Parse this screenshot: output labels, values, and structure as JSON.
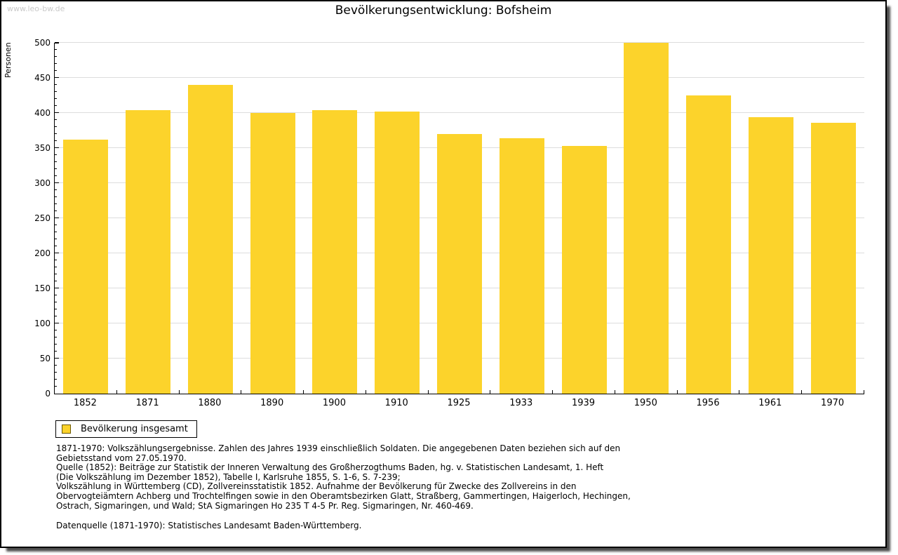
{
  "watermark": "www.leo-bw.de",
  "header": {
    "title": "Bevölkerungsentwicklung: Bofsheim"
  },
  "chart_data": {
    "type": "bar",
    "title": "Bevölkerungsentwicklung: Bofsheim",
    "ylabel": "Personen",
    "xlabel": "",
    "categories": [
      "1852",
      "1871",
      "1880",
      "1890",
      "1900",
      "1910",
      "1925",
      "1933",
      "1939",
      "1950",
      "1956",
      "1961",
      "1970"
    ],
    "values": [
      362,
      404,
      440,
      400,
      404,
      402,
      370,
      364,
      353,
      500,
      425,
      394,
      386
    ],
    "ylim": [
      0,
      500
    ],
    "ytick_step": 50,
    "minor_tick_step": 10,
    "grid": true,
    "legend_position": "bottom-left",
    "legend": [
      {
        "label": "Bevölkerung insgesamt"
      }
    ]
  },
  "colors": {
    "bar": "#FCD32B",
    "gridline": "#DDDDDD",
    "axis": "#000000",
    "watermark_text": "#C9C9C9",
    "swatch_border": "#6B5900"
  },
  "footer": {
    "source_lines": [
      "1871-1970: Volkszählungsergebnisse. Zahlen des Jahres 1939 einschließlich Soldaten. Die angegebenen Daten beziehen sich auf den",
      "Gebietsstand vom 27.05.1970.",
      "Quelle (1852): Beiträge zur Statistik der Inneren Verwaltung des Großherzogthums Baden, hg. v. Statistischen Landesamt, 1. Heft",
      "(Die Volkszählung im Dezember 1852), Tabelle I, Karlsruhe 1855, S. 1-6, S. 7-239;",
      "Volkszählung in Württemberg (CD), Zollvereinsstatistik 1852. Aufnahme der Bevölkerung für Zwecke des Zollvereins in den",
      "Obervogteiämtern Achberg und Trochtelfingen sowie in den Oberamtsbezirken Glatt, Straßberg, Gammertingen, Haigerloch, Hechingen,",
      "Ostrach, Sigmaringen, und Wald; StA Sigmaringen Ho 235 T 4-5 Pr. Reg. Sigmaringen, Nr. 460-469."
    ],
    "datasource": "Datenquelle (1871-1970): Statistisches Landesamt Baden-Württemberg."
  }
}
